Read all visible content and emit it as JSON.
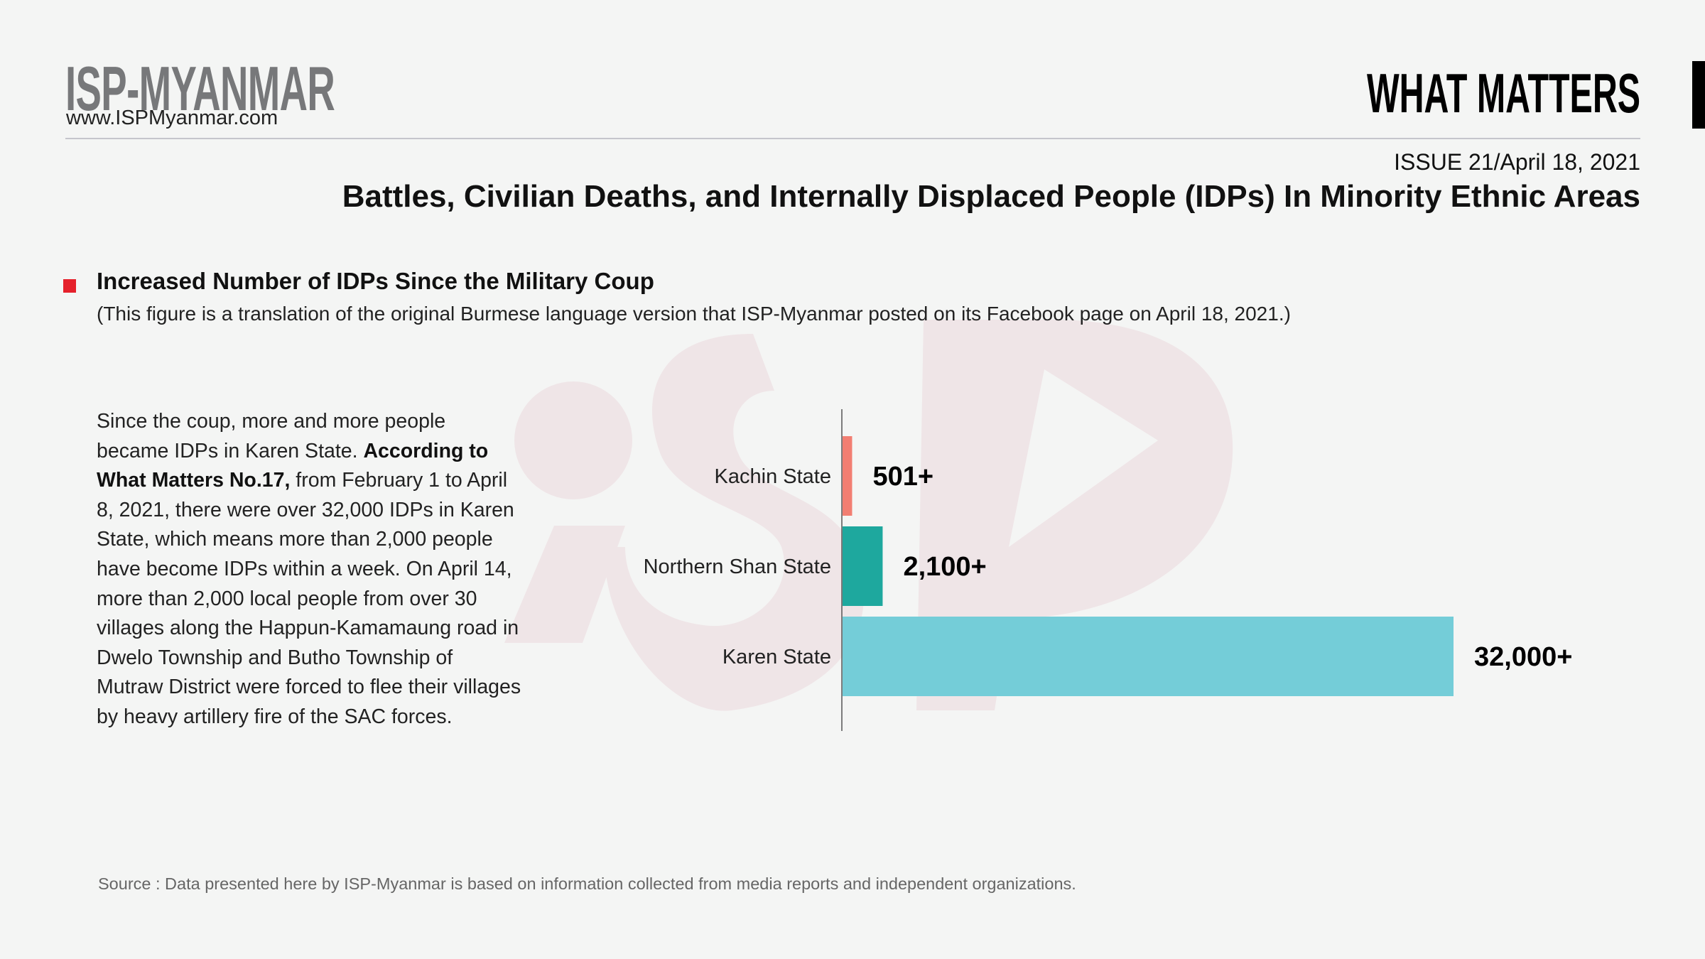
{
  "header": {
    "logo_text": "ISP-MYANMAR",
    "url": "www.ISPMyanmar.com",
    "publication": "WHAT MATTERS",
    "issue": "ISSUE 21",
    "issue_date": "/April 18, 2021",
    "title": "Battles, Civilian Deaths, and Internally Displaced People (IDPs) In Minority Ethnic Areas"
  },
  "section": {
    "heading": "Increased Number of IDPs Since the Military Coup",
    "note": "(This figure is a translation of the original Burmese language version that ISP-Myanmar posted on its Facebook page on April 18, 2021.)",
    "paragraph_part1": "Since the coup, more and more people became IDPs in Karen State. ",
    "paragraph_bold": "According to What Matters No.17,",
    "paragraph_part2": " from February 1 to April 8, 2021, there were over 32,000 IDPs in Karen State, which means more than 2,000 people have become IDPs within a week. On April 14, more than 2,000 local people from over 30 villages along the Happun-Kamamaung road in Dwelo Township and Butho Township of Mutraw District were forced to flee their villages by heavy artillery fire of the SAC forces."
  },
  "source": "Source :  Data presented here by ISP-Myanmar is based on information collected from media reports and independent organizations.",
  "colors": {
    "accent_red": "#e5212b",
    "background": "#f4f5f4",
    "watermark": "#efe5e7"
  },
  "chart_data": {
    "type": "bar",
    "orientation": "horizontal",
    "title": "",
    "xlabel": "",
    "ylabel": "",
    "categories": [
      "Kachin State",
      "Northern Shan State",
      "Karen State"
    ],
    "values": [
      501,
      2100,
      32000
    ],
    "value_labels": [
      "501+",
      "2,100+",
      "32,000+"
    ],
    "bar_colors": [
      "#f27e72",
      "#1ea89e",
      "#74cdd8"
    ],
    "xlim": [
      0,
      32000
    ],
    "grid": false
  }
}
